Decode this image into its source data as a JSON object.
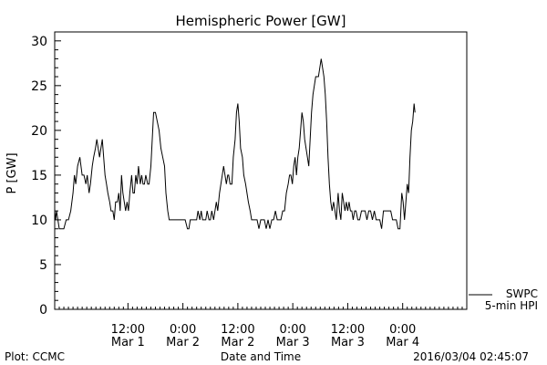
{
  "chart_data": {
    "type": "line",
    "title": "Hemispheric Power [GW]",
    "ylabel": "P [GW]",
    "xlabel": "Date and Time",
    "ylim": [
      0,
      31
    ],
    "yticks": [
      0,
      5,
      10,
      15,
      20,
      25,
      30
    ],
    "xlim_hours": [
      -16,
      74
    ],
    "xticks": [
      {
        "h": 0,
        "time": "12:00",
        "date": "Mar 1"
      },
      {
        "h": 12,
        "time": "0:00",
        "date": "Mar 2"
      },
      {
        "h": 24,
        "time": "12:00",
        "date": "Mar 2"
      },
      {
        "h": 36,
        "time": "0:00",
        "date": "Mar 3"
      },
      {
        "h": 48,
        "time": "12:00",
        "date": "Mar 3"
      },
      {
        "h": 60,
        "time": "0:00",
        "date": "Mar 4"
      }
    ],
    "legend": {
      "source": "SWPC",
      "series": "5-min HPI"
    },
    "series": [
      {
        "name": "5-min HPI",
        "points": [
          [
            -16,
            11
          ],
          [
            -15.8,
            10
          ],
          [
            -15.6,
            11
          ],
          [
            -15.3,
            10
          ],
          [
            -15,
            9
          ],
          [
            -14.5,
            9
          ],
          [
            -14,
            9
          ],
          [
            -13.5,
            10
          ],
          [
            -13,
            10
          ],
          [
            -12.5,
            11
          ],
          [
            -12,
            13
          ],
          [
            -11.7,
            15
          ],
          [
            -11.4,
            14
          ],
          [
            -11,
            16
          ],
          [
            -10.5,
            17
          ],
          [
            -10,
            15
          ],
          [
            -9.6,
            15
          ],
          [
            -9.2,
            14
          ],
          [
            -8.9,
            15
          ],
          [
            -8.5,
            13
          ],
          [
            -8.2,
            14
          ],
          [
            -7.8,
            16
          ],
          [
            -7.5,
            17
          ],
          [
            -7.1,
            18
          ],
          [
            -6.8,
            19
          ],
          [
            -6.5,
            18
          ],
          [
            -6.2,
            17
          ],
          [
            -5.9,
            18
          ],
          [
            -5.6,
            19
          ],
          [
            -5.3,
            17
          ],
          [
            -5,
            15
          ],
          [
            -4.7,
            14
          ],
          [
            -4.4,
            13
          ],
          [
            -4,
            12
          ],
          [
            -3.7,
            11
          ],
          [
            -3.3,
            11
          ],
          [
            -3,
            10
          ],
          [
            -2.7,
            12
          ],
          [
            -2.3,
            12
          ],
          [
            -2,
            13
          ],
          [
            -1.7,
            11
          ],
          [
            -1.4,
            15
          ],
          [
            -1.1,
            13
          ],
          [
            -0.8,
            12
          ],
          [
            -0.5,
            11
          ],
          [
            -0.2,
            12
          ],
          [
            0.1,
            11
          ],
          [
            0.4,
            13
          ],
          [
            0.8,
            15
          ],
          [
            1.1,
            13
          ],
          [
            1.4,
            13
          ],
          [
            1.7,
            15
          ],
          [
            2,
            14
          ],
          [
            2.3,
            16
          ],
          [
            2.7,
            14
          ],
          [
            3,
            15
          ],
          [
            3.3,
            14
          ],
          [
            3.6,
            14
          ],
          [
            3.9,
            15
          ],
          [
            4.3,
            14
          ],
          [
            4.6,
            14
          ],
          [
            5,
            16
          ],
          [
            5.3,
            19
          ],
          [
            5.6,
            22
          ],
          [
            6,
            22
          ],
          [
            6.4,
            21
          ],
          [
            6.8,
            20
          ],
          [
            7.2,
            18
          ],
          [
            7.6,
            17
          ],
          [
            8,
            16
          ],
          [
            8.3,
            13
          ],
          [
            8.7,
            11
          ],
          [
            9,
            10
          ],
          [
            9.5,
            10
          ],
          [
            10,
            10
          ],
          [
            10.5,
            10
          ],
          [
            11,
            10
          ],
          [
            11.5,
            10
          ],
          [
            12,
            10
          ],
          [
            12.5,
            10
          ],
          [
            13,
            9
          ],
          [
            13.3,
            9
          ],
          [
            13.6,
            10
          ],
          [
            14,
            10
          ],
          [
            14.4,
            10
          ],
          [
            14.7,
            10
          ],
          [
            15,
            10
          ],
          [
            15.3,
            11
          ],
          [
            15.7,
            10
          ],
          [
            16,
            11
          ],
          [
            16.3,
            10
          ],
          [
            16.7,
            10
          ],
          [
            17,
            10
          ],
          [
            17.3,
            11
          ],
          [
            17.7,
            10
          ],
          [
            18,
            10
          ],
          [
            18.3,
            11
          ],
          [
            18.7,
            10
          ],
          [
            19,
            11
          ],
          [
            19.3,
            12
          ],
          [
            19.6,
            11
          ],
          [
            20,
            13
          ],
          [
            20.3,
            14
          ],
          [
            20.6,
            15
          ],
          [
            20.9,
            16
          ],
          [
            21.2,
            15
          ],
          [
            21.5,
            14
          ],
          [
            21.8,
            15
          ],
          [
            22,
            15
          ],
          [
            22.3,
            14
          ],
          [
            22.7,
            14
          ],
          [
            23,
            17
          ],
          [
            23.4,
            19
          ],
          [
            23.7,
            22
          ],
          [
            24,
            23
          ],
          [
            24.3,
            21
          ],
          [
            24.6,
            18
          ],
          [
            25,
            17
          ],
          [
            25.3,
            15
          ],
          [
            25.7,
            14
          ],
          [
            26,
            13
          ],
          [
            26.3,
            12
          ],
          [
            26.7,
            11
          ],
          [
            27,
            10
          ],
          [
            27.4,
            10
          ],
          [
            27.8,
            10
          ],
          [
            28.2,
            10
          ],
          [
            28.6,
            9
          ],
          [
            29,
            10
          ],
          [
            29.4,
            10
          ],
          [
            29.8,
            10
          ],
          [
            30.2,
            9
          ],
          [
            30.6,
            10
          ],
          [
            31,
            9
          ],
          [
            31.4,
            10
          ],
          [
            31.8,
            10
          ],
          [
            32.2,
            11
          ],
          [
            32.6,
            10
          ],
          [
            33,
            10
          ],
          [
            33.4,
            10
          ],
          [
            33.8,
            11
          ],
          [
            34.2,
            11
          ],
          [
            34.6,
            13
          ],
          [
            35,
            14
          ],
          [
            35.3,
            15
          ],
          [
            35.6,
            15
          ],
          [
            35.9,
            14
          ],
          [
            36.2,
            16
          ],
          [
            36.5,
            17
          ],
          [
            36.8,
            15
          ],
          [
            37.1,
            17
          ],
          [
            37.4,
            18
          ],
          [
            37.7,
            20
          ],
          [
            38,
            22
          ],
          [
            38.3,
            21
          ],
          [
            38.6,
            19
          ],
          [
            38.9,
            18
          ],
          [
            39.2,
            17
          ],
          [
            39.5,
            16
          ],
          [
            39.8,
            19
          ],
          [
            40.1,
            22
          ],
          [
            40.4,
            24
          ],
          [
            40.7,
            25
          ],
          [
            41,
            26
          ],
          [
            41.3,
            26
          ],
          [
            41.6,
            26
          ],
          [
            41.9,
            27
          ],
          [
            42.2,
            28
          ],
          [
            42.5,
            27
          ],
          [
            42.8,
            26
          ],
          [
            43.1,
            24
          ],
          [
            43.4,
            21
          ],
          [
            43.7,
            17
          ],
          [
            44,
            14
          ],
          [
            44.3,
            12
          ],
          [
            44.6,
            11
          ],
          [
            44.9,
            12
          ],
          [
            45.2,
            11
          ],
          [
            45.5,
            10
          ],
          [
            45.9,
            13
          ],
          [
            46.2,
            11
          ],
          [
            46.5,
            10
          ],
          [
            46.8,
            13
          ],
          [
            47.1,
            12
          ],
          [
            47.4,
            11
          ],
          [
            47.7,
            12
          ],
          [
            48,
            11
          ],
          [
            48.3,
            12
          ],
          [
            48.6,
            11
          ],
          [
            48.9,
            11
          ],
          [
            49.2,
            10
          ],
          [
            49.5,
            11
          ],
          [
            49.8,
            11
          ],
          [
            50.2,
            10
          ],
          [
            50.6,
            10
          ],
          [
            51,
            11
          ],
          [
            51.4,
            11
          ],
          [
            51.8,
            11
          ],
          [
            52.2,
            10
          ],
          [
            52.6,
            11
          ],
          [
            53,
            11
          ],
          [
            53.4,
            10
          ],
          [
            53.8,
            11
          ],
          [
            54.2,
            10
          ],
          [
            54.6,
            10
          ],
          [
            55,
            10
          ],
          [
            55.4,
            9
          ],
          [
            55.8,
            11
          ],
          [
            56.2,
            11
          ],
          [
            56.6,
            11
          ],
          [
            57,
            11
          ],
          [
            57.4,
            11
          ],
          [
            57.8,
            10
          ],
          [
            58.2,
            10
          ],
          [
            58.6,
            10
          ],
          [
            59,
            9
          ],
          [
            59.4,
            9
          ],
          [
            59.8,
            13
          ],
          [
            60.1,
            12
          ],
          [
            60.4,
            10
          ],
          [
            60.7,
            12
          ],
          [
            61,
            14
          ],
          [
            61.3,
            13
          ],
          [
            61.6,
            17
          ],
          [
            61.9,
            20
          ],
          [
            62.2,
            21
          ],
          [
            62.5,
            23
          ],
          [
            62.7,
            22
          ]
        ]
      }
    ],
    "grid": false
  },
  "footer": {
    "left": "Plot: CCMC",
    "right": "2016/03/04 02:45:07"
  }
}
